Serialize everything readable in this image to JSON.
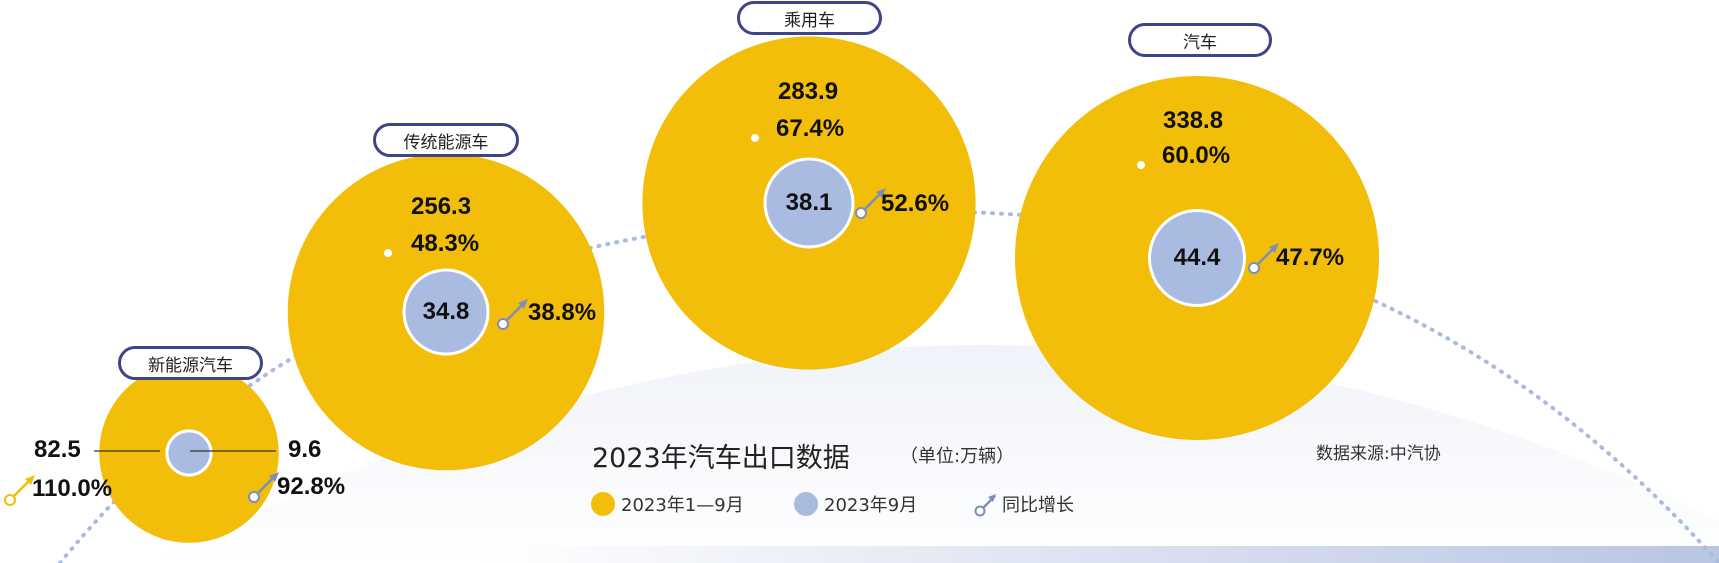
{
  "chart_data": {
    "type": "bubble",
    "title": "2023年汽车出口数据",
    "unit": "（单位:万辆）",
    "source": "数据来源:中汽协",
    "legend": [
      {
        "label": "2023年1—9月",
        "color": "#f2be0a"
      },
      {
        "label": "2023年9月",
        "color": "#a9bbe0"
      },
      {
        "label": "同比增长",
        "icon": "growth-arrow-icon"
      }
    ],
    "categories": [
      "新能源汽车",
      "传统能源车",
      "乘用车",
      "汽车"
    ],
    "series": [
      {
        "name": "2023年1—9月",
        "values": [
          82.5,
          256.3,
          283.9,
          338.8
        ],
        "growth": [
          "110.0%",
          "48.3%",
          "67.4%",
          "60.0%"
        ]
      },
      {
        "name": "2023年9月",
        "values": [
          9.6,
          34.8,
          38.1,
          44.4
        ],
        "growth": [
          "92.8%",
          "38.8%",
          "52.6%",
          "47.7%"
        ]
      }
    ],
    "colors": {
      "outer": "#f2be0a",
      "inner": "#a9bbe0",
      "pill_border": "#414389",
      "arrow_outer": "#f2be0a",
      "arrow_inner": "#7d8fb8"
    }
  }
}
